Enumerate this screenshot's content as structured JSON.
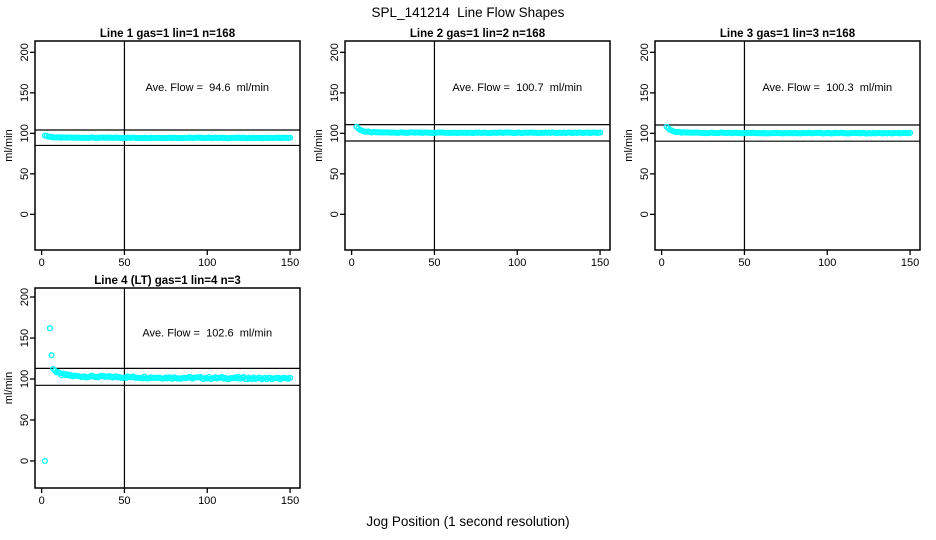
{
  "title": "SPL_141214  Line Flow Shapes",
  "xlabel": "Jog Position (1 second resolution)",
  "colors": {
    "point": "#00FFFF",
    "axis": "#000000",
    "background": "#FFFFFF"
  },
  "chart_data": [
    {
      "type": "scatter",
      "title": "Line 1 gas=1 lin=1 n=168",
      "annotation": "Ave. Flow =  94.6  ml/min",
      "avg_flow_ml_min": 94.6,
      "ylabel": "ml/min",
      "xticks": [
        0,
        50,
        100,
        150
      ],
      "yticks": [
        0,
        50,
        100,
        150,
        200
      ],
      "xlim": [
        -4,
        156
      ],
      "ylim": [
        -44,
        214
      ],
      "vline_x": 50,
      "hlines": [
        104.1,
        85.1
      ],
      "point_color": "#00FFFF",
      "band": {
        "x_start": 2,
        "x_end": 150,
        "step": 1,
        "jitter": 0.35,
        "keypoints": [
          [
            2,
            97.5
          ],
          [
            4,
            96.1
          ],
          [
            7,
            95.1
          ],
          [
            12,
            94.7
          ],
          [
            40,
            94.5
          ],
          [
            150,
            94.3
          ]
        ]
      },
      "outliers": []
    },
    {
      "type": "scatter",
      "title": "Line 2 gas=1 lin=2 n=168",
      "annotation": "Ave. Flow =  100.7  ml/min",
      "avg_flow_ml_min": 100.7,
      "ylabel": "ml/min",
      "xticks": [
        0,
        50,
        100,
        150
      ],
      "yticks": [
        0,
        50,
        100,
        150,
        200
      ],
      "xlim": [
        -4,
        156
      ],
      "ylim": [
        -44,
        214
      ],
      "vline_x": 50,
      "hlines": [
        110.8,
        90.6
      ],
      "point_color": "#00FFFF",
      "band": {
        "x_start": 3,
        "x_end": 150,
        "step": 1,
        "jitter": 0.4,
        "keypoints": [
          [
            3,
            108.2
          ],
          [
            5,
            104.2
          ],
          [
            8,
            102.2
          ],
          [
            12,
            101.3
          ],
          [
            30,
            100.9
          ],
          [
            150,
            100.6
          ]
        ]
      },
      "outliers": []
    },
    {
      "type": "scatter",
      "title": "Line 3 gas=1 lin=3 n=168",
      "annotation": "Ave. Flow =  100.3  ml/min",
      "avg_flow_ml_min": 100.3,
      "ylabel": "ml/min",
      "xticks": [
        0,
        50,
        100,
        150
      ],
      "yticks": [
        0,
        50,
        100,
        150,
        200
      ],
      "xlim": [
        -4,
        156
      ],
      "ylim": [
        -44,
        214
      ],
      "vline_x": 50,
      "hlines": [
        110.3,
        90.3
      ],
      "point_color": "#00FFFF",
      "band": {
        "x_start": 3,
        "x_end": 150,
        "step": 1,
        "jitter": 0.4,
        "keypoints": [
          [
            3,
            108.0
          ],
          [
            5,
            104.3
          ],
          [
            8,
            102.0
          ],
          [
            12,
            101.0
          ],
          [
            30,
            100.5
          ],
          [
            150,
            100.2
          ]
        ]
      },
      "outliers": []
    },
    {
      "type": "scatter",
      "title": "Line 4 (LT) gas=1 lin=4 n=3",
      "annotation": "Ave. Flow =  102.6  ml/min",
      "avg_flow_ml_min": 102.6,
      "ylabel": "ml/min",
      "xticks": [
        0,
        50,
        100,
        150
      ],
      "yticks": [
        0,
        50,
        100,
        150,
        200
      ],
      "xlim": [
        -4,
        156
      ],
      "ylim": [
        -33,
        211
      ],
      "vline_x": 50,
      "hlines": [
        112.9,
        92.3
      ],
      "point_color": "#00FFFF",
      "band": {
        "x_start": 7,
        "x_end": 150,
        "step": 1,
        "jitter": 1.3,
        "keypoints": [
          [
            7,
            113
          ],
          [
            9,
            108
          ],
          [
            12,
            105.5
          ],
          [
            20,
            103.5
          ],
          [
            40,
            102.5
          ],
          [
            80,
            101.5
          ],
          [
            120,
            101
          ],
          [
            150,
            100.3
          ]
        ]
      },
      "outliers": [
        [
          2,
          0
        ],
        [
          5,
          162
        ],
        [
          6,
          129
        ]
      ]
    }
  ]
}
